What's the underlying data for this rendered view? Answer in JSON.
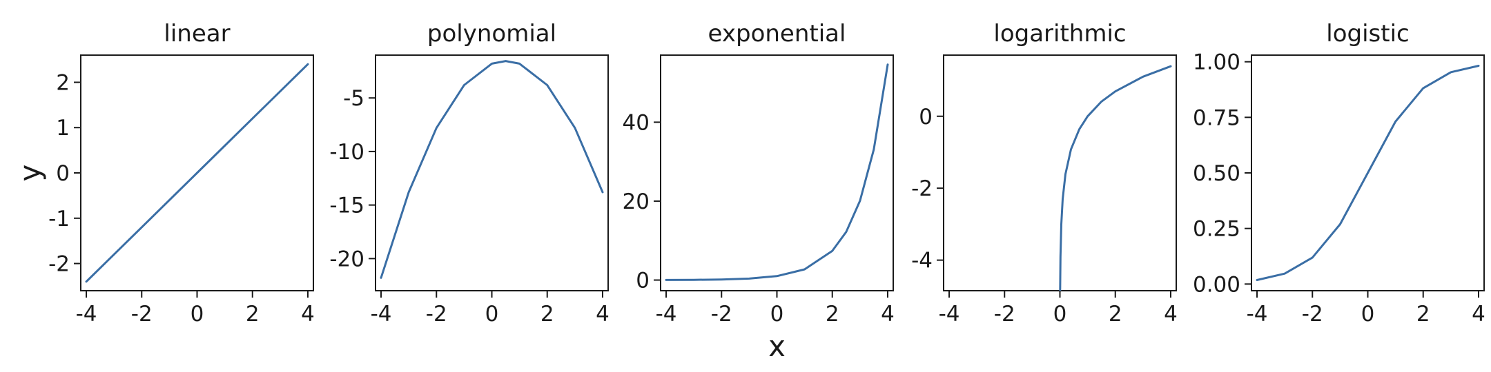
{
  "figure": {
    "xlabel": "x",
    "ylabel": "y"
  },
  "chart_data": [
    {
      "type": "line",
      "title": "linear",
      "xlabel": "",
      "ylabel": "",
      "xlim": [
        -4.2,
        4.2
      ],
      "ylim": [
        -2.6,
        2.6
      ],
      "xticks": [
        -4,
        -2,
        0,
        2,
        4
      ],
      "xtick_labels": [
        "-4",
        "-2",
        "0",
        "2",
        "4"
      ],
      "yticks": [
        -2,
        -1,
        0,
        1,
        2
      ],
      "ytick_labels": [
        "-2",
        "-1",
        "0",
        "1",
        "2"
      ],
      "color": "#3a6ea5",
      "series": [
        {
          "x": [
            -4,
            -2,
            0,
            2,
            4
          ],
          "y": [
            -2.4,
            -1.2,
            0.0,
            1.2,
            2.4
          ]
        }
      ]
    },
    {
      "type": "line",
      "title": "polynomial",
      "xlabel": "",
      "ylabel": "",
      "xlim": [
        -4.2,
        4.2
      ],
      "ylim": [
        -23.0,
        -1.0
      ],
      "xticks": [
        -4,
        -2,
        0,
        2,
        4
      ],
      "xtick_labels": [
        "-4",
        "-2",
        "0",
        "2",
        "4"
      ],
      "yticks": [
        -20,
        -15,
        -10,
        -5
      ],
      "ytick_labels": [
        "-20",
        "-15",
        "-10",
        "-5"
      ],
      "color": "#3a6ea5",
      "series": [
        {
          "x": [
            -4,
            -3,
            -2,
            -1,
            0,
            0.5,
            1,
            2,
            3,
            4
          ],
          "y": [
            -21.8,
            -13.8,
            -7.8,
            -3.8,
            -1.8,
            -1.55,
            -1.8,
            -3.8,
            -7.8,
            -13.8
          ]
        }
      ]
    },
    {
      "type": "line",
      "title": "exponential",
      "xlabel": "",
      "ylabel": "",
      "xlim": [
        -4.2,
        4.2
      ],
      "ylim": [
        -2.7,
        57.0
      ],
      "xticks": [
        -4,
        -2,
        0,
        2,
        4
      ],
      "xtick_labels": [
        "-4",
        "-2",
        "0",
        "2",
        "4"
      ],
      "yticks": [
        0,
        20,
        40
      ],
      "ytick_labels": [
        "0",
        "20",
        "40"
      ],
      "color": "#3a6ea5",
      "series": [
        {
          "x": [
            -4,
            -3,
            -2,
            -1,
            0,
            1,
            2,
            2.5,
            3,
            3.5,
            4
          ],
          "y": [
            0.02,
            0.05,
            0.14,
            0.37,
            1.0,
            2.72,
            7.39,
            12.18,
            20.09,
            33.12,
            54.6
          ]
        }
      ]
    },
    {
      "type": "line",
      "title": "logarithmic",
      "xlabel": "",
      "ylabel": "",
      "xlim": [
        -4.2,
        4.2
      ],
      "ylim": [
        -4.85,
        1.7
      ],
      "xticks": [
        -4,
        -2,
        0,
        2,
        4
      ],
      "xtick_labels": [
        "-4",
        "-2",
        "0",
        "2",
        "4"
      ],
      "yticks": [
        -4,
        -2,
        0
      ],
      "ytick_labels": [
        "-4",
        "-2",
        "0"
      ],
      "color": "#3a6ea5",
      "series": [
        {
          "x": [
            0.008,
            0.02,
            0.05,
            0.1,
            0.2,
            0.4,
            0.7,
            1,
            1.5,
            2,
            3,
            4
          ],
          "y": [
            -4.85,
            -3.91,
            -3.0,
            -2.3,
            -1.61,
            -0.92,
            -0.36,
            0.0,
            0.41,
            0.69,
            1.1,
            1.39
          ]
        }
      ]
    },
    {
      "type": "line",
      "title": "logistic",
      "xlabel": "",
      "ylabel": "",
      "xlim": [
        -4.2,
        4.2
      ],
      "ylim": [
        -0.03,
        1.03
      ],
      "xticks": [
        -4,
        -2,
        0,
        2,
        4
      ],
      "xtick_labels": [
        "-4",
        "-2",
        "0",
        "2",
        "4"
      ],
      "yticks": [
        0.0,
        0.25,
        0.5,
        0.75,
        1.0
      ],
      "ytick_labels": [
        "0.00",
        "0.25",
        "0.50",
        "0.75",
        "1.00"
      ],
      "color": "#3a6ea5",
      "series": [
        {
          "x": [
            -4,
            -3,
            -2,
            -1,
            0,
            1,
            2,
            3,
            4
          ],
          "y": [
            0.018,
            0.047,
            0.119,
            0.269,
            0.5,
            0.731,
            0.881,
            0.953,
            0.982
          ]
        }
      ]
    }
  ]
}
